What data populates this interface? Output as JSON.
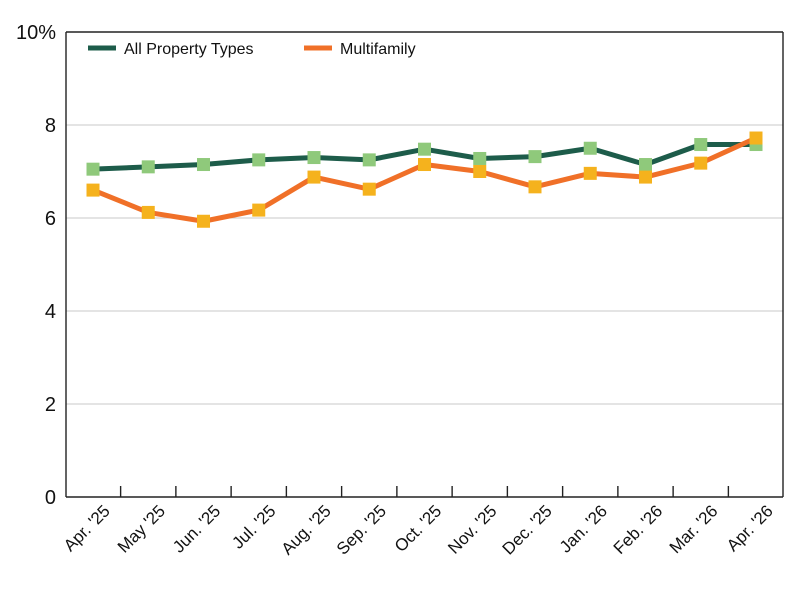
{
  "chart_data": {
    "type": "line",
    "title": "",
    "xlabel": "",
    "ylabel": "",
    "ylim": [
      0,
      10
    ],
    "y_ticks": [
      {
        "value": 0,
        "label": "0"
      },
      {
        "value": 2,
        "label": "2"
      },
      {
        "value": 4,
        "label": "4"
      },
      {
        "value": 6,
        "label": "6"
      },
      {
        "value": 8,
        "label": "8"
      },
      {
        "value": 10,
        "label": "10%"
      }
    ],
    "categories": [
      "Apr. '25",
      "May '25",
      "Jun. '25",
      "Jul. '25",
      "Aug. '25",
      "Sep. '25",
      "Oct. '25",
      "Nov. '25",
      "Dec. '25",
      "Jan. '26",
      "Feb. '26",
      "Mar. '26",
      "Apr. '26"
    ],
    "grid": true,
    "legend_position": "top-left",
    "series": [
      {
        "name": "All Property Types",
        "line_color": "#1d5c4a",
        "marker_color": "#8fc97b",
        "values": [
          7.05,
          7.1,
          7.15,
          7.25,
          7.3,
          7.25,
          7.48,
          7.28,
          7.32,
          7.5,
          7.15,
          7.58,
          7.58
        ]
      },
      {
        "name": "Multifamily",
        "line_color": "#f07028",
        "marker_color": "#f5b21d",
        "values": [
          6.6,
          6.12,
          5.93,
          6.17,
          6.88,
          6.62,
          7.15,
          7.0,
          6.67,
          6.96,
          6.88,
          7.18,
          7.72
        ]
      }
    ]
  }
}
